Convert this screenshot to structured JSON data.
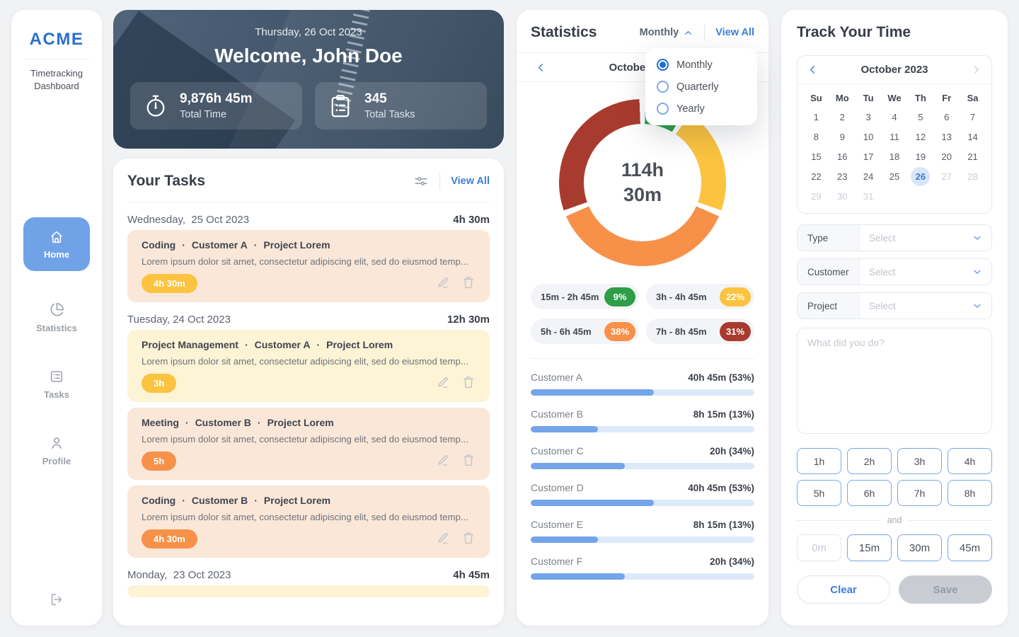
{
  "colors": {
    "accent_blue": "#3d7fd9",
    "nav_active_blue": "#70a2e8",
    "bar_fill_blue": "#74a4e9",
    "bar_track_blue": "#dce9f8",
    "green": "#2e9e48",
    "yellow": "#fbc33f",
    "orange": "#f79149",
    "red": "#a93b2e",
    "card_peach": "#fae7d8",
    "card_yellow": "#fdf3d5"
  },
  "sidebar": {
    "logo": "ACME",
    "subtitle": "Timetracking Dashboard",
    "nav": [
      {
        "label": "Home",
        "icon": "home-icon",
        "active": true
      },
      {
        "label": "Statistics",
        "icon": "pie-chart-icon",
        "active": false
      },
      {
        "label": "Tasks",
        "icon": "tasks-icon",
        "active": false
      },
      {
        "label": "Profile",
        "icon": "profile-icon",
        "active": false
      }
    ]
  },
  "welcome": {
    "date": "Thursday, 26 Oct 2023",
    "greeting": "Welcome, John Doe",
    "stats": [
      {
        "icon": "stopwatch-icon",
        "value": "9,876h 45m",
        "label": "Total Time"
      },
      {
        "icon": "clipboard-icon",
        "value": "345",
        "label": "Total Tasks"
      }
    ]
  },
  "tasks": {
    "title": "Your Tasks",
    "view_all": "View All",
    "groups": [
      {
        "day": "Wednesday,  25 Oct 2023",
        "total": "4h 30m",
        "items": [
          {
            "type": "Coding",
            "customer": "Customer A",
            "project": "Project Lorem",
            "description": "Lorem ipsum dolor sit amet, consectetur adipiscing elit, sed do eiusmod temp...",
            "duration": "4h 30m",
            "tone": "peach",
            "pill": "yellow"
          }
        ]
      },
      {
        "day": "Tuesday, 24 Oct 2023",
        "total": "12h 30m",
        "items": [
          {
            "type": "Project Management",
            "customer": "Customer A",
            "project": "Project Lorem",
            "description": "Lorem ipsum dolor sit amet, consectetur adipiscing elit, sed do eiusmod temp...",
            "duration": "3h",
            "tone": "yellow",
            "pill": "yellow"
          },
          {
            "type": "Meeting",
            "customer": "Customer B",
            "project": "Project Lorem",
            "description": "Lorem ipsum dolor sit amet, consectetur adipiscing elit, sed do eiusmod temp...",
            "duration": "5h",
            "tone": "peach",
            "pill": "orange"
          },
          {
            "type": "Coding",
            "customer": "Customer B",
            "project": "Project Lorem",
            "description": "Lorem ipsum dolor sit amet, consectetur adipiscing elit, sed do eiusmod temp...",
            "duration": "4h 30m",
            "tone": "peach",
            "pill": "orange"
          }
        ]
      },
      {
        "day": "Monday,  23 Oct 2023",
        "total": "4h 45m",
        "items": [],
        "partial_card_tone": "yellow"
      }
    ]
  },
  "statistics": {
    "title": "Statistics",
    "period": {
      "value": "Monthly",
      "options": [
        "Monthly",
        "Quarterly",
        "Yearly"
      ],
      "selected": "Monthly",
      "open": true
    },
    "view_all": "View All",
    "month_label": "October 2023",
    "center_line1": "114h",
    "center_line2": "30m"
  },
  "chart_data": [
    {
      "type": "pie",
      "title": "",
      "labels": [
        "15m - 2h 45m",
        "3h - 4h 45m",
        "5h - 6h 45m",
        "7h - 8h 45m"
      ],
      "values": [
        9,
        22,
        38,
        31
      ],
      "unit": "%",
      "colors": [
        "#2e9e48",
        "#fbc33f",
        "#f79149",
        "#a93b2e"
      ],
      "donut": true,
      "center_label": "114h 30m",
      "legend_position": "below"
    },
    {
      "type": "bar",
      "orientation": "horizontal",
      "categories": [
        "Customer A",
        "Customer B",
        "Customer C",
        "Customer D",
        "Customer E",
        "Customer F"
      ],
      "value_labels": [
        "40h 45m (53%)",
        "8h 15m (13%)",
        "20h (34%)",
        "40h 45m (53%)",
        "8h 15m (13%)",
        "20h (34%)"
      ],
      "values_hours": [
        40.75,
        8.25,
        20,
        40.75,
        8.25,
        20
      ],
      "bar_fill_percent": [
        55,
        30,
        42,
        55,
        30,
        42
      ]
    }
  ],
  "track": {
    "title": "Track Your Time",
    "calendar": {
      "month": "October 2023",
      "weekdays": [
        "Su",
        "Mo",
        "Tu",
        "We",
        "Th",
        "Fr",
        "Sa"
      ],
      "start_offset": 0,
      "days_in_month": 31,
      "selected_day": 26,
      "disabled_from": 27
    },
    "fields": [
      {
        "label": "Type",
        "placeholder": "Select"
      },
      {
        "label": "Customer",
        "placeholder": "Select"
      },
      {
        "label": "Project",
        "placeholder": "Select"
      }
    ],
    "note_placeholder": "What did you do?",
    "hour_buttons": [
      "1h",
      "2h",
      "3h",
      "4h",
      "5h",
      "6h",
      "7h",
      "8h"
    ],
    "and_label": "and",
    "minute_buttons": [
      {
        "label": "0m",
        "disabled": true
      },
      {
        "label": "15m",
        "disabled": false
      },
      {
        "label": "30m",
        "disabled": false
      },
      {
        "label": "45m",
        "disabled": false
      }
    ],
    "clear_label": "Clear",
    "save_label": "Save"
  }
}
